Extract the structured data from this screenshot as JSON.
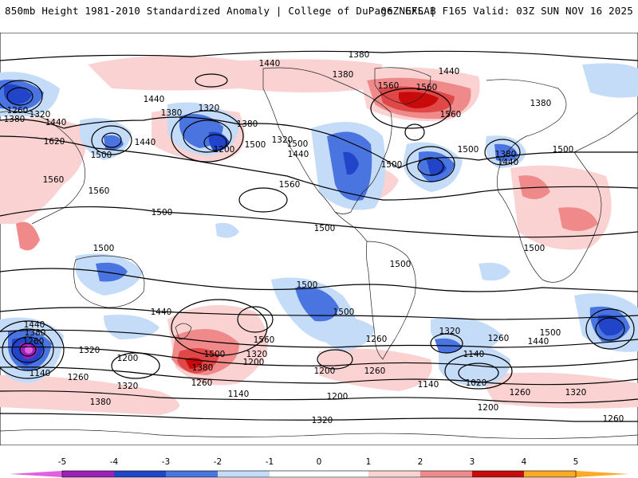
{
  "header": {
    "title": "850mb Height 1981-2010 Standardized Anomaly | College of DuPage NEXLAB",
    "run_info": "06Z GFS | F165 Valid: 03Z SUN NOV 16 2025"
  },
  "colors": {
    "neg5": "#e060e0",
    "neg4": "#9a22b8",
    "neg3": "#2244c8",
    "neg2": "#4a74e0",
    "neg1": "#c4dcf8",
    "zero": "#ffffff",
    "pos1": "#fad2d2",
    "pos2": "#f08a8a",
    "pos3": "#e04848",
    "pos4": "#c80a0a",
    "pos5": "#ffaa22"
  },
  "colorbar": {
    "labels": [
      "-5",
      "-4",
      "-3",
      "-2",
      "-1",
      "0",
      "1",
      "2",
      "3",
      "4",
      "5"
    ]
  },
  "contour_labels": [
    "1380",
    "1440",
    "1440",
    "1380",
    "1560",
    "1560",
    "1560",
    "1260",
    "1320",
    "1380",
    "1440",
    "1320",
    "1380",
    "1200",
    "1380",
    "1500",
    "1320",
    "1440",
    "1500",
    "1440",
    "1500",
    "1500",
    "1380",
    "1440",
    "1380",
    "1500",
    "1440",
    "1500",
    "1620",
    "1560",
    "1560",
    "1560",
    "1500",
    "1500",
    "1500",
    "1500",
    "1500",
    "1500",
    "1440",
    "1500",
    "1440",
    "1380",
    "1260",
    "1320",
    "1140",
    "1200",
    "1320",
    "1260",
    "1200",
    "1260",
    "1320",
    "1140",
    "1020",
    "1140",
    "1260",
    "1440",
    "1500",
    "1320",
    "1260",
    "1200",
    "1560",
    "1500",
    "1380",
    "1320",
    "1260",
    "1200",
    "1140",
    "1200",
    "1260",
    "1320",
    "1380",
    "1260"
  ]
}
